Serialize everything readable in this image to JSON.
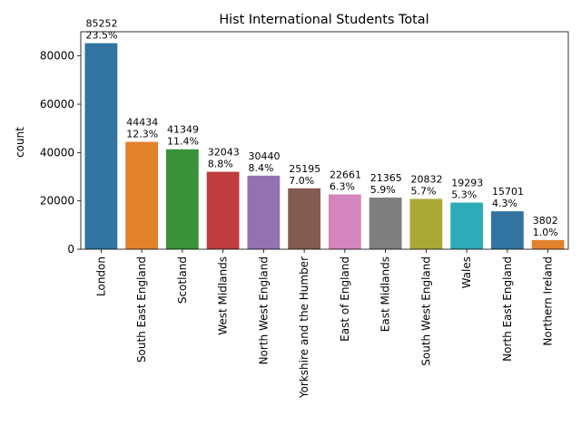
{
  "chart_data": {
    "type": "bar",
    "title": "Hist International Students Total",
    "xlabel": "",
    "ylabel": "count",
    "ylim": [
      0,
      90000
    ],
    "yticks": [
      0,
      20000,
      40000,
      60000,
      80000
    ],
    "grid": false,
    "categories": [
      "London",
      "South East England",
      "Scotland",
      "West Midlands",
      "North West England",
      "Yorkshire and the Humber",
      "East of England",
      "East Midlands",
      "South West England",
      "Wales",
      "North East England",
      "Northern Ireland"
    ],
    "values": [
      85252,
      44434,
      41349,
      32043,
      30440,
      25195,
      22661,
      21365,
      20832,
      19293,
      15701,
      3802
    ],
    "percent_labels": [
      "23.5%",
      "12.3%",
      "11.4%",
      "8.8%",
      "8.4%",
      "7.0%",
      "6.3%",
      "5.9%",
      "5.7%",
      "5.3%",
      "4.3%",
      "1.0%"
    ],
    "colors": [
      "#3274a1",
      "#e1812c",
      "#3a923a",
      "#c03d3e",
      "#9372b2",
      "#845b53",
      "#d684bd",
      "#7f7f7f",
      "#a9aa35",
      "#2eabb8",
      "#3274a1",
      "#e1812c"
    ]
  }
}
